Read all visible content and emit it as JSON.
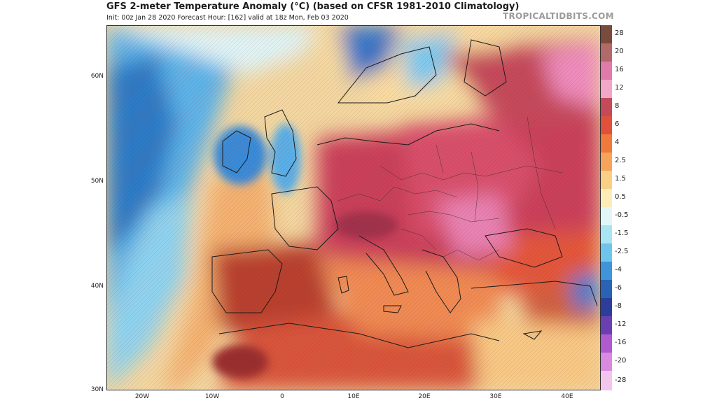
{
  "title": "GFS 2-meter Temperature Anomaly (°C) (based on CFSR 1981-2010 Climatology)",
  "subtitle": "Init: 00z Jan 28 2020   Forecast Hour: [162]   valid at 18z Mon, Feb 03 2020",
  "brand": "TROPICALTIDBITS.COM",
  "map": {
    "lat_labels": [
      "60N",
      "50N",
      "40N",
      "30N"
    ],
    "lon_labels": [
      "20W",
      "10W",
      "0",
      "10E",
      "20E",
      "30E",
      "40E"
    ]
  },
  "scale": {
    "labels": [
      "28",
      "20",
      "16",
      "12",
      "8",
      "6",
      "4",
      "2.5",
      "1.5",
      "0.5",
      "-0.5",
      "-1.5",
      "-2.5",
      "-4",
      "-6",
      "-8",
      "-12",
      "-16",
      "-20",
      "-28"
    ],
    "colors": [
      "#7a4a3a",
      "#b06a6a",
      "#e07aa8",
      "#f2a6c8",
      "#c44a5a",
      "#e0503a",
      "#f07a3a",
      "#f5a45a",
      "#f9cf85",
      "#fbecb8",
      "#e2f6f8",
      "#a8e4f2",
      "#6fc4ea",
      "#3f94da",
      "#2a63b5",
      "#2d3e9a",
      "#6a40b0",
      "#b05ad0",
      "#d88ae0",
      "#f2c6ec"
    ]
  }
}
